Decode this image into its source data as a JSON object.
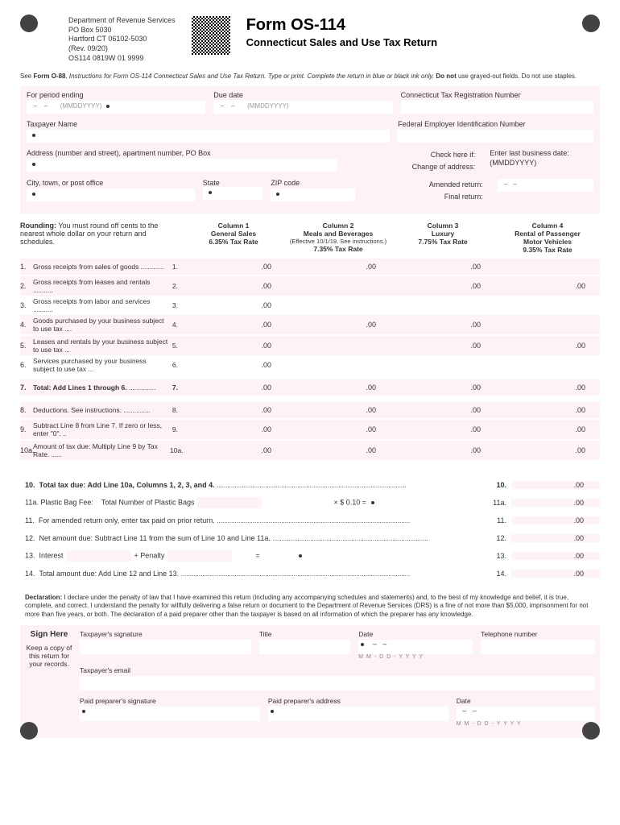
{
  "header": {
    "dept": "Department of Revenue Services",
    "po": "PO Box 5030",
    "city": "Hartford CT 06102-5030",
    "rev": "(Rev. 09/20)",
    "code": "OS114 0819W 01 9999",
    "title": "Form OS-114",
    "subtitle": "Connecticut Sales and Use Tax Return"
  },
  "instr_prefix": "See ",
  "instr_bold": "Form O-88",
  "instr_mid": ", Instructions for Form OS-114 Connecticut Sales and Use Tax Return. Type or print. Complete the return in blue or black ink only. ",
  "instr_bold2": "Do not",
  "instr_end": " use grayed-out fields. Do not use staples.",
  "fields": {
    "period": "For period ending",
    "due": "Due date",
    "reg": "Connecticut Tax Registration Number",
    "taxpayer": "Taxpayer Name",
    "fein": "Federal Employer Identification Number",
    "address": "Address (number and street), apartment number, PO Box",
    "checkif": "Check here if:",
    "change": "Change of address:",
    "amended": "Amended return:",
    "final": "Final return:",
    "lastbiz": "Enter last business date:",
    "lastbiz_hint": "(MMDDYYYY)",
    "city": "City, town, or post office",
    "state": "State",
    "zip": "ZIP code",
    "mmdd": "(MMDDYYYY)"
  },
  "rounding_bold": "Rounding:",
  "rounding": " You must round off cents to the nearest whole dollar on your return and schedules.",
  "cols": {
    "c1": {
      "t": "Column 1",
      "s1": "General Sales",
      "s2": "6.35% Tax Rate"
    },
    "c2": {
      "t": "Column 2",
      "s1": "Meals and Beverages",
      "eff": "(Effective 10/1/19. See instructions.)",
      "s2": "7.35% Tax Rate"
    },
    "c3": {
      "t": "Column 3",
      "s1": "Luxury",
      "s2": "7.75% Tax Rate"
    },
    "c4": {
      "t": "Column 4",
      "s1": "Rental of Passenger",
      "s1b": "Motor Vehicles",
      "s2": "9.35% Tax Rate"
    }
  },
  "lines": {
    "l1": {
      "n": "1.",
      "d": "Gross receipts from sales of goods",
      "ln": "1.",
      "c": [
        ".00",
        ".00",
        ".00",
        ""
      ]
    },
    "l2": {
      "n": "2.",
      "d": "Gross receipts from leases and rentals",
      "ln": "2.",
      "c": [
        ".00",
        "",
        ".00",
        ".00"
      ]
    },
    "l3": {
      "n": "3.",
      "d": "Gross receipts from labor and services",
      "ln": "3.",
      "c": [
        ".00",
        "",
        "",
        ""
      ]
    },
    "l4": {
      "n": "4.",
      "d": "Goods purchased by your business subject to use tax",
      "ln": "4.",
      "c": [
        ".00",
        ".00",
        ".00",
        ""
      ]
    },
    "l5": {
      "n": "5.",
      "d": "Leases and rentals by your business subject to use tax",
      "ln": "5.",
      "c": [
        ".00",
        "",
        ".00",
        ".00"
      ]
    },
    "l6": {
      "n": "6.",
      "d": "Services purchased by your business subject to use tax",
      "ln": "6.",
      "c": [
        ".00",
        "",
        "",
        ""
      ]
    },
    "l7": {
      "n": "7.",
      "d": "Total: Add Lines 1 through 6.",
      "ln": "7.",
      "c": [
        ".00",
        ".00",
        ".00",
        ".00"
      ]
    },
    "l8": {
      "n": "8.",
      "d": "Deductions. See instructions.",
      "ln": "8.",
      "c": [
        ".00",
        ".00",
        ".00",
        ".00"
      ]
    },
    "l9": {
      "n": "9.",
      "d": "Subtract Line 8 from Line 7. If zero or less, enter \"0\".",
      "ln": "9.",
      "c": [
        ".00",
        ".00",
        ".00",
        ".00"
      ]
    },
    "l10a": {
      "n": "10a.",
      "d": "Amount of tax due: Multiply Line 9 by Tax Rate.",
      "ln": "10a.",
      "c": [
        ".00",
        ".00",
        ".00",
        ".00"
      ]
    }
  },
  "totals": {
    "l10": {
      "n": "10.",
      "d": "Total tax due: Add Line 10a, Columns 1, 2, 3, and 4.",
      "rn": "10.",
      "amt": ".00"
    },
    "l11a_pre": "11a. Plastic Bag Fee:",
    "l11a_mid": "Total Number of Plastic Bags",
    "l11a_calc": "× $ 0.10 =",
    "l11a_rn": "11a.",
    "l11a_amt": ".00",
    "l11": {
      "n": "11.",
      "d": "For amended return only, enter tax paid on prior return.",
      "rn": "11.",
      "amt": ".00"
    },
    "l12": {
      "n": "12.",
      "d": "Net amount due: Subtract Line 11 from the sum of Line 10 and Line 11a.",
      "rn": "12.",
      "amt": ".00"
    },
    "l13_n": "13.",
    "l13_int": "Interest",
    "l13_pen": "+ Penalty",
    "l13_eq": "=",
    "l13_rn": "13.",
    "l13_amt": ".00",
    "l14": {
      "n": "14.",
      "d": "Total amount due: Add Line 12 and Line 13.",
      "rn": "14.",
      "amt": ".00"
    }
  },
  "decl_bold": "Declaration:",
  "decl": " I declare under the penalty of law that I have examined this return (including any accompanying schedules and statements) and, to the best of my knowledge and belief, it is true, complete, and correct. I understand the penalty for willfully delivering a false return or document to the Department of Revenue Services (DRS) is a fine of not more than $5,000, imprisonment for not more than five years, or both. The declaration of a paid preparer other than the taxpayer is based on all information of which the preparer has any knowledge.",
  "sign": {
    "here": "Sign Here",
    "keep": "Keep a copy of this return for your records.",
    "tsig": "Taxpayer's signature",
    "title": "Title",
    "date": "Date",
    "tel": "Telephone number",
    "email": "Taxpayer's email",
    "psig": "Paid preparer's signature",
    "paddr": "Paid preparer's address",
    "dhint": "M M - D D - Y Y Y Y"
  }
}
